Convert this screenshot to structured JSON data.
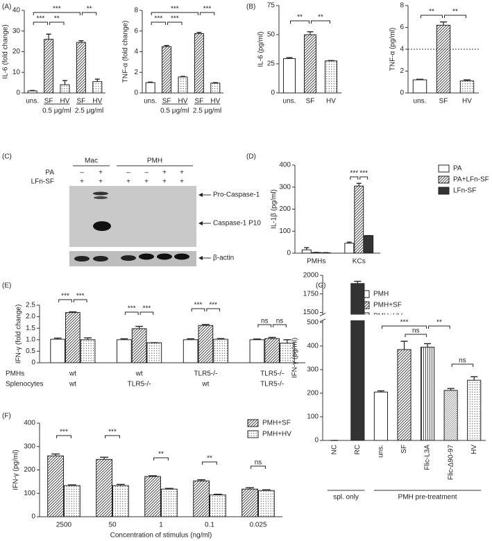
{
  "chart_data": [
    {
      "type": "bar",
      "panel": "(A)",
      "y_label": "IL-6 (fold change)",
      "categories": [
        "uns.",
        "SF",
        "HV",
        "SF",
        "HV"
      ],
      "bar_fills": [
        "open",
        "hatch",
        "dots",
        "hatch",
        "dots"
      ],
      "series": [
        {
          "values": [
            1,
            26,
            4,
            24.5,
            5.5
          ],
          "errors": [
            0.2,
            2.5,
            2,
            0.8,
            1.2
          ]
        }
      ],
      "ylim": [
        0,
        40
      ],
      "yticks": [
        0,
        10,
        20,
        30,
        40
      ],
      "significance": [
        "***",
        "**",
        "***",
        "**"
      ],
      "group_labels": [
        "0.5 μg/ml",
        "2.5 μg/ml"
      ]
    },
    {
      "type": "bar",
      "y_label": "TNF-α (fold change)",
      "categories": [
        "uns.",
        "SF",
        "HV",
        "SF",
        "HV"
      ],
      "bar_fills": [
        "open",
        "hatch",
        "dots",
        "hatch",
        "dots"
      ],
      "series": [
        {
          "values": [
            1,
            4.5,
            1.55,
            5.75,
            0.95
          ],
          "errors": [
            0.05,
            0.1,
            0.05,
            0.12,
            0.05
          ]
        }
      ],
      "ylim": [
        0,
        8
      ],
      "yticks": [
        0,
        2,
        4,
        6,
        8
      ],
      "significance": [
        "***",
        "***",
        "***",
        "***"
      ],
      "group_labels": [
        "0.5 μg/ml",
        "2.5 μg/ml"
      ]
    },
    {
      "type": "bar",
      "panel": "(B)",
      "y_label": "IL-6 (pg/ml)",
      "categories": [
        "uns.",
        "SF",
        "HV"
      ],
      "bar_fills": [
        "open",
        "hatch",
        "dots"
      ],
      "series": [
        {
          "values": [
            29.5,
            50,
            27.5
          ],
          "errors": [
            0.8,
            2.5,
            0.3
          ]
        }
      ],
      "ylim": [
        0,
        75
      ],
      "yticks": [
        0,
        25,
        50,
        75
      ],
      "significance": [
        "**",
        "**"
      ]
    },
    {
      "type": "bar",
      "y_label": "TNF-α (pg/ml)",
      "categories": [
        "uns.",
        "SF",
        "HV"
      ],
      "bar_fills": [
        "open",
        "hatch",
        "dots"
      ],
      "series": [
        {
          "values": [
            1.2,
            6.2,
            1.1
          ],
          "errors": [
            0.05,
            0.3,
            0.1
          ]
        }
      ],
      "ylim": [
        0,
        8
      ],
      "yticks": [
        0,
        2,
        4,
        6,
        8
      ],
      "reference_line": 4,
      "significance": [
        "**",
        "**"
      ]
    },
    {
      "type": "bar",
      "panel": "(D)",
      "y_label": "IL-1β (pg/ml)",
      "categories": [
        "PMHs",
        "KCs"
      ],
      "series": [
        {
          "name": "PA",
          "fill": "open",
          "values": [
            15,
            45
          ],
          "errors": [
            10,
            5
          ]
        },
        {
          "name": "PA+LFn-SF",
          "fill": "hatch",
          "values": [
            3,
            305
          ],
          "errors": [
            0.5,
            12
          ]
        },
        {
          "name": "LFn-SF",
          "fill": "dark",
          "values": [
            2,
            80
          ],
          "errors": [
            0.5,
            0
          ]
        }
      ],
      "ylim": [
        0,
        400
      ],
      "yticks": [
        0,
        100,
        200,
        300,
        400
      ],
      "legend": "right",
      "significance": [
        "***",
        "***"
      ]
    },
    {
      "type": "bar",
      "panel": "(E)",
      "y_label": "IFN-γ (fold change)",
      "category_rows": [
        {
          "name": "PMHs",
          "labels": [
            "wt",
            "wt",
            "TLR5-/-",
            "TLR5-/-"
          ]
        },
        {
          "name": "Splenocytes",
          "labels": [
            "wt",
            "TLR5-/-",
            "wt",
            "TLR5-/-"
          ]
        }
      ],
      "series": [
        {
          "name": "PMH",
          "fill": "open",
          "values": [
            1.02,
            1.0,
            1.0,
            1.0
          ],
          "errors": [
            0.05,
            0.04,
            0.04,
            0.03
          ]
        },
        {
          "name": "PMH+SF",
          "fill": "hatch",
          "values": [
            2.18,
            1.48,
            1.62,
            1.05
          ],
          "errors": [
            0.03,
            0.1,
            0.04,
            0.05
          ]
        },
        {
          "name": "PMH+HV",
          "fill": "dots",
          "values": [
            1.0,
            0.87,
            1.02,
            0.85
          ],
          "errors": [
            0.08,
            0,
            0.03,
            0.15
          ]
        }
      ],
      "ylim": [
        0,
        2.5
      ],
      "yticks": [
        0,
        0.5,
        {
          "value": 1,
          "label": "1.0"
        },
        1.5,
        {
          "value": 2,
          "label": "2.0"
        },
        2.5
      ],
      "legend": "right",
      "significance": [
        "***",
        "***",
        "***",
        "***",
        "***",
        "***",
        "ns",
        "ns"
      ]
    },
    {
      "type": "bar",
      "panel": "(G)",
      "y_label": "IFN-γ (pg/ml)",
      "categories": [
        "NC",
        "RC",
        "uns.",
        "SF",
        "Flic-L3A",
        "Flic-Δ90-97",
        "HV"
      ],
      "bar_fills": [
        "open",
        "dark",
        "open",
        "hatch",
        "vlines",
        "fine",
        "dots"
      ],
      "series": [
        {
          "values": [
            0,
            1890,
            205,
            385,
            395,
            212,
            255
          ],
          "errors": [
            0,
            30,
            5,
            35,
            15,
            8,
            15
          ]
        }
      ],
      "ylim": [
        0,
        2000
      ],
      "axis_break": [
        500,
        1500
      ],
      "yticks": [
        0,
        100,
        200,
        300,
        400,
        500,
        1500,
        1750,
        2000
      ],
      "rotate_x_labels": true,
      "significance": [
        "***",
        "ns",
        "**",
        "ns"
      ],
      "group_labels": [
        "spl. only",
        "PMH pre-treatment"
      ]
    },
    {
      "type": "bar",
      "panel": "(F)",
      "y_label": "IFN-γ (pg/ml)",
      "x_label": "Concentration of stimulus (ng/ml)",
      "categories": [
        "2500",
        "50",
        "1",
        "0.1",
        "0.025"
      ],
      "series": [
        {
          "name": "PMH+SF",
          "fill": "hatch",
          "values": [
            260,
            245,
            172,
            153,
            118
          ],
          "errors": [
            8,
            9,
            3,
            5,
            6
          ]
        },
        {
          "name": "PMH+HV",
          "fill": "dots",
          "values": [
            133,
            133,
            118,
            93,
            112
          ],
          "errors": [
            3,
            5,
            3,
            3,
            3
          ]
        }
      ],
      "ylim": [
        0,
        400
      ],
      "yticks": [
        0,
        100,
        200,
        300,
        400
      ],
      "legend": "right",
      "significance": [
        "***",
        "***",
        "**",
        "**",
        "ns"
      ]
    }
  ],
  "blot": {
    "panel": "(C)",
    "groups": [
      "Mac",
      "PMH"
    ],
    "rows": [
      {
        "name": "PA",
        "symbols": [
          "–",
          "+",
          "–",
          "–",
          "+",
          "+"
        ]
      },
      {
        "name": "LFn-SF",
        "symbols": [
          "+",
          "+",
          "+",
          "+",
          "+",
          "+"
        ]
      }
    ],
    "markers": [
      "Pro-Caspase-1",
      "Caspase-1 P10",
      "β-actin"
    ]
  }
}
